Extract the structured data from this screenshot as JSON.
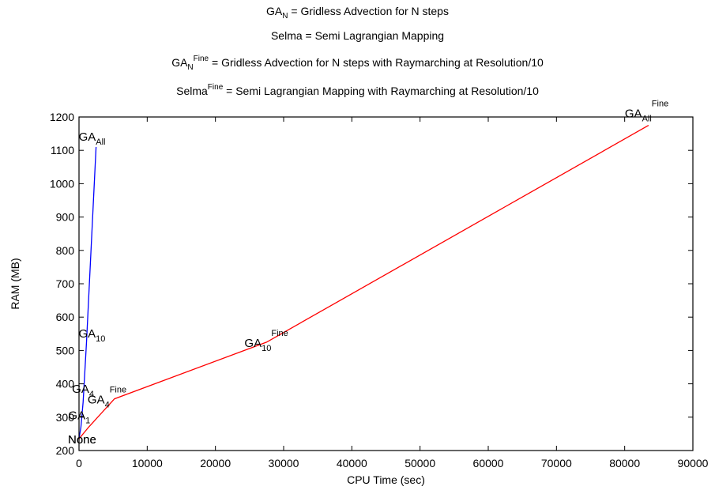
{
  "legend": [
    {
      "base": "GA",
      "sub": "N",
      "sup": "",
      "text": " = Gridless Advection for N steps"
    },
    {
      "base": "Selma",
      "sub": "",
      "sup": "",
      "text": " = Semi Lagrangian Mapping"
    },
    {
      "base": "GA",
      "sub": "N",
      "sup": "Fine",
      "text": " = Gridless Advection for N steps with Raymarching at Resolution/10"
    },
    {
      "base": "Selma",
      "sub": "",
      "sup": "Fine",
      "text": " = Semi Lagrangian Mapping with Raymarching at Resolution/10"
    }
  ],
  "chart_data": {
    "type": "line",
    "title": "",
    "xlabel": "CPU Time (sec)",
    "ylabel": "RAM (MB)",
    "xlim": [
      0,
      90000
    ],
    "ylim": [
      200,
      1200
    ],
    "xticks": [
      "0",
      "10000",
      "20000",
      "30000",
      "40000",
      "50000",
      "60000",
      "70000",
      "80000",
      "90000"
    ],
    "yticks": [
      "200",
      "300",
      "400",
      "500",
      "600",
      "700",
      "800",
      "900",
      "1000",
      "1100",
      "1200"
    ],
    "grid": false,
    "series": [
      {
        "color": "#0000ff",
        "points": [
          {
            "x": 0,
            "y": 235,
            "base": "None",
            "sub": "",
            "sup": ""
          },
          {
            "x": 280,
            "y": 270,
            "base": "GA",
            "sub": "1",
            "sup": ""
          },
          {
            "x": 600,
            "y": 345,
            "base": "GA",
            "sub": "4",
            "sup": ""
          },
          {
            "x": 1100,
            "y": 525,
            "base": "GA",
            "sub": "10",
            "sup": ""
          },
          {
            "x": 2500,
            "y": 1110,
            "base": "GA",
            "sub": "All",
            "sup": ""
          }
        ]
      },
      {
        "color": "#ff0000",
        "points": [
          {
            "x": 0,
            "y": 235,
            "base": "None",
            "sub": "",
            "sup": ""
          },
          {
            "x": 1400,
            "y": 270,
            "base": "",
            "sub": "",
            "sup": ""
          },
          {
            "x": 5200,
            "y": 355,
            "base": "GA",
            "sub": "4",
            "sup": "Fine"
          },
          {
            "x": 27500,
            "y": 525,
            "base": "GA",
            "sub": "10",
            "sup": "Fine"
          },
          {
            "x": 83500,
            "y": 1175,
            "base": "GA",
            "sub": "All",
            "sup": "Fine"
          }
        ]
      }
    ]
  }
}
